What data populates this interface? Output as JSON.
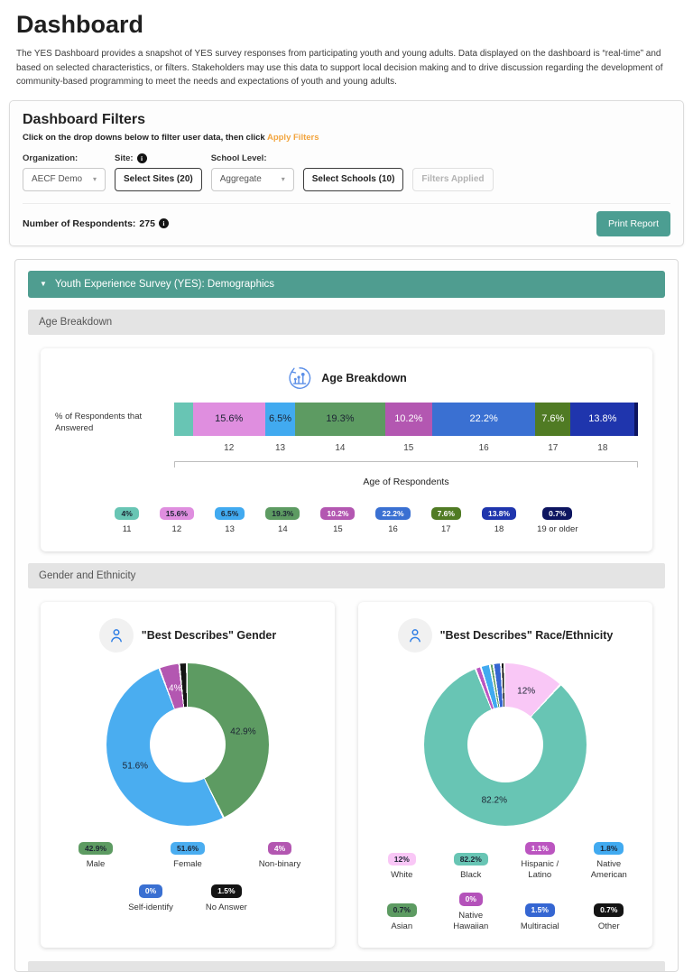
{
  "page": {
    "title": "Dashboard",
    "intro": "The YES Dashboard provides a snapshot of YES survey responses from participating youth and young adults. Data displayed on the dashboard is “real-time” and based on selected characteristics, or filters. Stakeholders may use this data to support local decision making and to drive discussion regarding the development of community-based programming to meet the needs and expectations of youth and young adults."
  },
  "filters": {
    "title": "Dashboard Filters",
    "hint_prefix": "Click on the drop downs below to filter user data, then click ",
    "hint_link": "Apply Filters",
    "organization_label": "Organization:",
    "site_label": "Site:",
    "school_level_label": "School Level:",
    "organization_value": "AECF Demo",
    "select_sites_label": "Select Sites (20)",
    "school_level_value": "Aggregate",
    "select_schools_label": "Select Schools (10)",
    "filters_applied_label": "Filters Applied",
    "respondents_label": "Number of Respondents:",
    "respondents_count": "275",
    "print_report_label": "Print Report"
  },
  "sections": {
    "demographics_header": "Youth Experience Survey (YES): Demographics",
    "age_breakdown": "Age Breakdown",
    "gender_ethnicity": "Gender and Ethnicity"
  },
  "colors": {
    "teal_header": "#4f9d90",
    "print_button": "#4c9e92",
    "apply_filters_link": "#f2a43d",
    "section_bar_bg": "#e4e4e4",
    "icon_blue": "#5b8fe8"
  },
  "chart_data": [
    {
      "type": "bar",
      "variant": "stacked-horizontal",
      "title": "Age Breakdown",
      "row_label": "% of Respondents that Answered",
      "xlabel": "Age of Respondents",
      "categories": [
        "11",
        "12",
        "13",
        "14",
        "15",
        "16",
        "17",
        "18",
        "19 or older"
      ],
      "values": [
        4,
        15.6,
        6.5,
        19.3,
        10.2,
        22.2,
        7.6,
        13.8,
        0.7
      ],
      "labels": [
        "4%",
        "15.6%",
        "6.5%",
        "19.3%",
        "10.2%",
        "22.2%",
        "7.6%",
        "13.8%",
        "0.7%"
      ],
      "colors": [
        "#68c5b4",
        "#df8edf",
        "#41aaf0",
        "#5d9b62",
        "#b357b1",
        "#3a70d2",
        "#507b24",
        "#1f35ad",
        "#0d1560"
      ],
      "label_text_colors": [
        "#1c2433",
        "#1c2433",
        "#1c2433",
        "#1c2433",
        "#ffffff",
        "#ffffff",
        "#ffffff",
        "#ffffff",
        "#ffffff"
      ],
      "bar_label_min": 5
    },
    {
      "type": "pie",
      "variant": "donut",
      "title": "\"Best Describes\" Gender",
      "categories": [
        "Male",
        "Female",
        "Non-binary",
        "Self-identify",
        "No Answer"
      ],
      "values": [
        42.9,
        51.6,
        4,
        0,
        1.5
      ],
      "labels": [
        "42.9%",
        "51.6%",
        "4%",
        "0%",
        "1.5%"
      ],
      "colors": [
        "#5d9b62",
        "#4aadf0",
        "#b357b1",
        "#3a70d2",
        "#141414"
      ],
      "label_text_colors": [
        "#1c2433",
        "#1c2433",
        "#ffffff",
        "#ffffff",
        "#ffffff"
      ],
      "slice_label_min": 4
    },
    {
      "type": "pie",
      "variant": "donut",
      "title": "\"Best Describes\" Race/Ethnicity",
      "categories": [
        "White",
        "Black",
        "Hispanic / Latino",
        "Native American",
        "Asian",
        "Native Hawaiian",
        "Multiracial",
        "Other"
      ],
      "values": [
        12,
        82.2,
        1.1,
        1.8,
        0.7,
        0,
        1.5,
        0.7
      ],
      "labels": [
        "12%",
        "82.2%",
        "1.1%",
        "1.8%",
        "0.7%",
        "0%",
        "1.5%",
        "0.7%"
      ],
      "colors": [
        "#f9c7f6",
        "#68c5b4",
        "#bb55c0",
        "#41aaf0",
        "#5d9b62",
        "#b452ba",
        "#3566d2",
        "#141414"
      ],
      "label_text_colors": [
        "#1c2433",
        "#1c2433",
        "#ffffff",
        "#1c2433",
        "#1c2433",
        "#ffffff",
        "#ffffff",
        "#ffffff"
      ],
      "slice_label_min": 4
    }
  ]
}
